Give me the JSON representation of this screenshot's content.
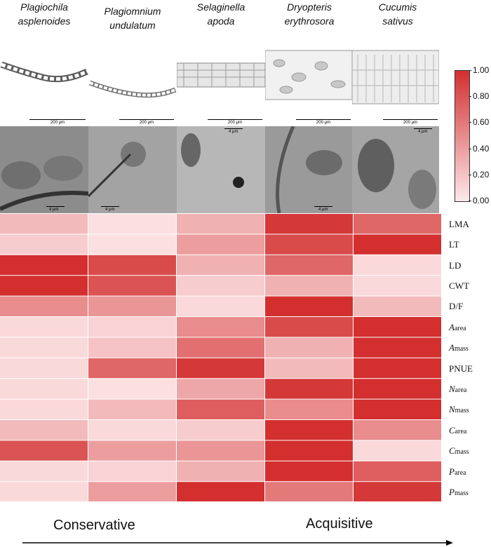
{
  "species": [
    {
      "line1": "Plagiochila",
      "line2": "asplenoides"
    },
    {
      "line1": "Plagiomnium",
      "line2": "undulatum"
    },
    {
      "line1": "Selaginella",
      "line2": "apoda"
    },
    {
      "line1": "Dryopteris",
      "line2": "erythrosora"
    },
    {
      "line1": "Cucumis",
      "line2": "sativus"
    }
  ],
  "micrographs": {
    "light_scale_label": "200 μm",
    "tem_scale_label": "4 μm"
  },
  "gradient": {
    "left_label": "Conservative",
    "right_label": "Acquisitive"
  },
  "colorbar": {
    "min": 0.0,
    "max": 1.0,
    "ticks": [
      "0.00",
      "0.20",
      "0.40",
      "0.60",
      "0.80",
      "1.00"
    ],
    "color_low": "#fde8ea",
    "color_high": "#d32f2f"
  },
  "chart_data": {
    "type": "heatmap",
    "title": "",
    "columns": [
      "Plagiochila asplenoides",
      "Plagiomnium undulatum",
      "Selaginella apoda",
      "Dryopteris erythrosora",
      "Cucumis sativus"
    ],
    "rows": [
      {
        "main": "LMA",
        "sub": "",
        "italic": false,
        "values": [
          0.25,
          0.05,
          0.3,
          0.95,
          0.7
        ]
      },
      {
        "main": "LT",
        "sub": "",
        "italic": false,
        "values": [
          0.15,
          0.05,
          0.4,
          0.85,
          1.0
        ]
      },
      {
        "main": "LD",
        "sub": "",
        "italic": false,
        "values": [
          1.0,
          0.85,
          0.3,
          0.7,
          0.08
        ]
      },
      {
        "main": "CWT",
        "sub": "",
        "italic": false,
        "values": [
          1.0,
          0.8,
          0.15,
          0.3,
          0.08
        ]
      },
      {
        "main": "D/F",
        "sub": "",
        "italic": false,
        "values": [
          0.5,
          0.45,
          0.08,
          1.0,
          0.25
        ]
      },
      {
        "main": "A",
        "sub": "area",
        "italic": true,
        "values": [
          0.08,
          0.12,
          0.5,
          0.85,
          1.0
        ]
      },
      {
        "main": "A",
        "sub": "mass",
        "italic": true,
        "values": [
          0.08,
          0.2,
          0.65,
          0.3,
          1.0
        ]
      },
      {
        "main": "PNUE",
        "sub": "",
        "italic": false,
        "values": [
          0.08,
          0.7,
          0.95,
          0.25,
          1.0
        ]
      },
      {
        "main": "N",
        "sub": "area",
        "italic": true,
        "values": [
          0.08,
          0.05,
          0.35,
          0.95,
          1.0
        ]
      },
      {
        "main": "N",
        "sub": "mass",
        "italic": true,
        "values": [
          0.08,
          0.25,
          0.75,
          0.5,
          1.0
        ]
      },
      {
        "main": "C",
        "sub": "area",
        "italic": true,
        "values": [
          0.25,
          0.08,
          0.15,
          1.0,
          0.5
        ]
      },
      {
        "main": "C",
        "sub": "mass",
        "italic": true,
        "values": [
          0.8,
          0.4,
          0.45,
          1.0,
          0.08
        ]
      },
      {
        "main": "P",
        "sub": "area",
        "italic": true,
        "values": [
          0.08,
          0.12,
          0.3,
          1.0,
          0.75
        ]
      },
      {
        "main": "P",
        "sub": "mass",
        "italic": true,
        "values": [
          0.08,
          0.4,
          1.0,
          0.6,
          0.95
        ]
      }
    ],
    "colorscale_range": [
      0,
      1
    ]
  }
}
